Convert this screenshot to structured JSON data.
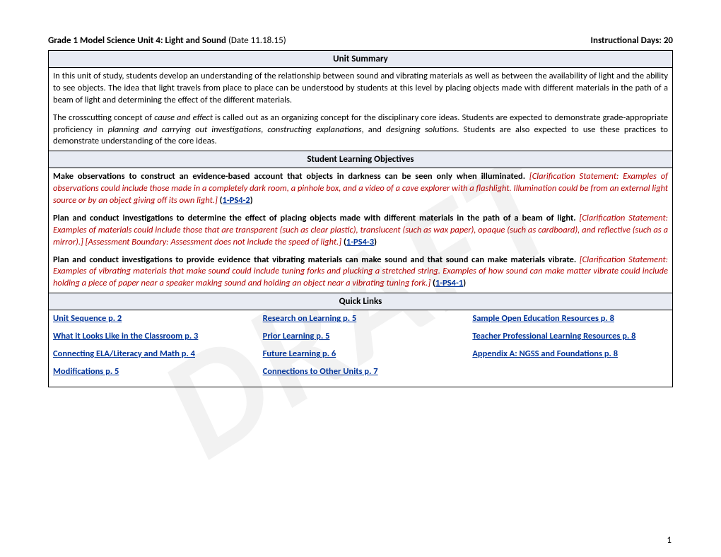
{
  "header": {
    "title_bold": "Grade 1 Model Science Unit 4: Light and Sound",
    "title_date": " (Date 11.18.15)",
    "days": "Instructional Days: 20"
  },
  "watermark": "DRAFT",
  "sections": {
    "unit_summary_head": "Unit Summary",
    "unit_summary_p1": "In this unit of study, students develop an understanding of the relationship between sound and vibrating materials as well as between the availability of light and the ability to see objects. The idea that light travels from place to place can be understood by students at this level by placing objects made with different materials in the path of a beam of light and determining the effect of the different materials.",
    "unit_summary_p2a": "The crosscutting concept of ",
    "unit_summary_p2b": "cause and effect",
    "unit_summary_p2c": " is called out as an organizing concept for the disciplinary core ideas. Students are expected to demonstrate grade-appropriate proficiency in ",
    "unit_summary_p2d": "planning and carrying out investigations",
    "unit_summary_p2e": ", ",
    "unit_summary_p2f": "constructing explanations",
    "unit_summary_p2g": ", and ",
    "unit_summary_p2h": "designing solutions",
    "unit_summary_p2i": ". Students are also expected to use these practices to demonstrate understanding of the core ideas.",
    "slo_head": "Student Learning Objectives",
    "slo1_lead": "Make observations to construct an evidence-based account that objects in darkness can be seen only when illuminated. ",
    "slo1_clar": "[Clarification Statement: Examples of observations could include those made in a completely dark room, a pinhole box, and a video of a cave explorer with a flashlight. Illumination could be from an external light source or by an object giving off its own light.]",
    "slo1_code": "1-PS4-2",
    "slo2_lead": "Plan and conduct investigations to determine the effect of placing objects made with different materials in the path of a beam of light. ",
    "slo2_clar": "[Clarification Statement: Examples of materials could include those that are transparent (such as clear plastic), translucent (such as wax paper), opaque (such as cardboard), and reflective (such as a mirror).] [Assessment Boundary: Assessment does not include the speed of light.]",
    "slo2_code": "1-PS4-3",
    "slo3_lead": "Plan and conduct investigations to provide evidence that vibrating materials can make sound and that sound can make materials vibrate. ",
    "slo3_clar": "[Clarification Statement: Examples of vibrating materials that make sound could include tuning forks and plucking a stretched string. Examples of how sound can make matter vibrate could include holding a piece of paper near a speaker making sound and holding an object near a vibrating tuning fork.]",
    "slo3_code": "1-PS4-1",
    "quick_head": "Quick Links",
    "ql": {
      "c1": [
        "Unit Sequence p. 2 ",
        "What it Looks Like in the Classroom p. 3",
        "Connecting ELA/Literacy and Math p. 4",
        "Modifications p. 5 "
      ],
      "c2": [
        "Research on Learning p. 5",
        "Prior Learning p. 5",
        "Future Learning p. 6",
        "Connections to Other Units p. 7 "
      ],
      "c3": [
        "Sample Open Education Resources p. 8 ",
        "Teacher Professional Learning Resources p. 8",
        "Appendix A: NGSS and Foundations p. 8"
      ]
    }
  },
  "page_num": "1",
  "paren_open": " (",
  "paren_close": ")"
}
